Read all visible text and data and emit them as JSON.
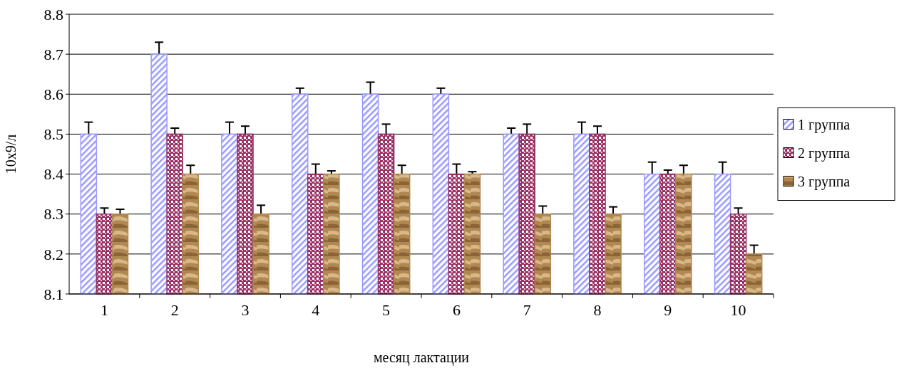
{
  "chart_data": {
    "type": "bar",
    "xlabel": "месяц лактации",
    "ylabel": "10х9/л",
    "categories": [
      "1",
      "2",
      "3",
      "4",
      "5",
      "6",
      "7",
      "8",
      "9",
      "10"
    ],
    "series": [
      {
        "name": "1 группа",
        "color": "#9999ff",
        "values": [
          8.5,
          8.7,
          8.5,
          8.6,
          8.6,
          8.6,
          8.5,
          8.5,
          8.4,
          8.4
        ],
        "errors": [
          0.03,
          0.03,
          0.03,
          0.015,
          0.03,
          0.015,
          0.015,
          0.03,
          0.03,
          0.03
        ]
      },
      {
        "name": "2 группа",
        "color": "#993366",
        "values": [
          8.3,
          8.5,
          8.5,
          8.4,
          8.5,
          8.4,
          8.5,
          8.5,
          8.4,
          8.3
        ],
        "errors": [
          0.015,
          0.015,
          0.02,
          0.025,
          0.025,
          0.025,
          0.025,
          0.02,
          0.01,
          0.015
        ]
      },
      {
        "name": "3 группа",
        "color": "#b08850",
        "values": [
          8.3,
          8.4,
          8.3,
          8.4,
          8.4,
          8.4,
          8.3,
          8.3,
          8.4,
          8.2
        ],
        "errors": [
          0.012,
          0.022,
          0.022,
          0.008,
          0.022,
          0.006,
          0.02,
          0.018,
          0.022,
          0.022
        ]
      }
    ],
    "ylim": [
      8.1,
      8.8
    ],
    "yticks": [
      8.1,
      8.2,
      8.3,
      8.4,
      8.5,
      8.6,
      8.7,
      8.8
    ],
    "grid": "y",
    "legend": "right"
  }
}
